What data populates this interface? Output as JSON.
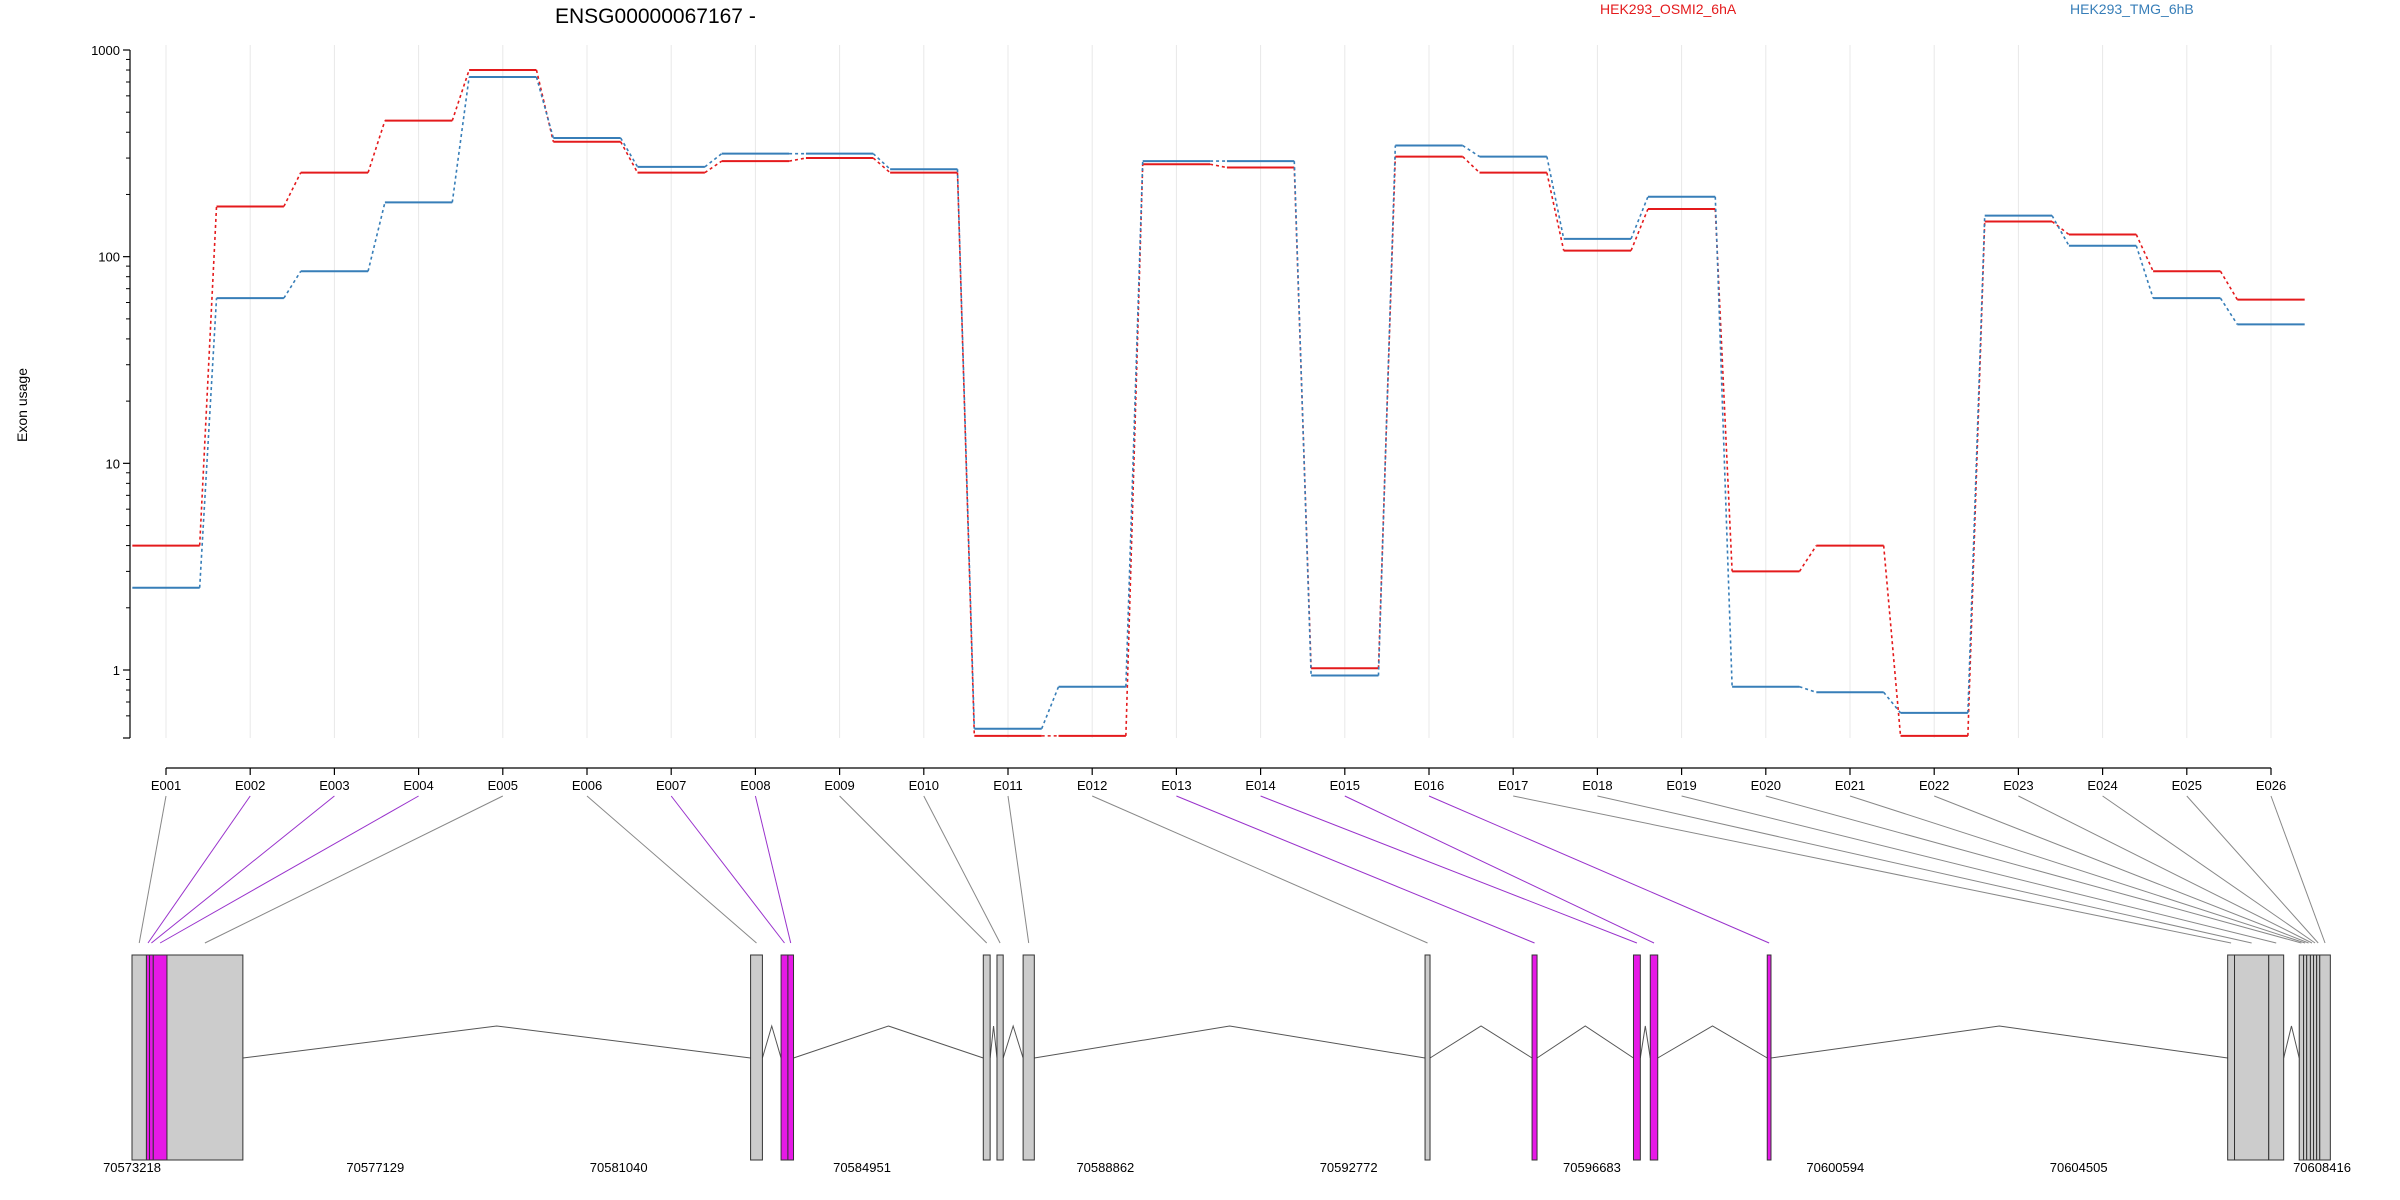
{
  "chart_data": {
    "type": "line",
    "title": "ENSG00000067167 -",
    "ylabel": "Exon usage",
    "yscale": "log",
    "ylim": [
      0.48,
      1000
    ],
    "yticks": [
      1,
      10,
      100,
      1000
    ],
    "ytick_labels": [
      "1",
      "10",
      "100",
      "1000"
    ],
    "categories": [
      "E001",
      "E002",
      "E003",
      "E004",
      "E005",
      "E006",
      "E007",
      "E008",
      "E009",
      "E010",
      "E011",
      "E012",
      "E013",
      "E014",
      "E015",
      "E016",
      "E017",
      "E018",
      "E019",
      "E020",
      "E021",
      "E022",
      "E023",
      "E024",
      "E025",
      "E026"
    ],
    "series": [
      {
        "name": "HEK293_OSMI2_6hA",
        "color": "#e41a1c",
        "values": [
          4.0,
          175,
          255,
          455,
          800,
          360,
          255,
          290,
          300,
          255,
          0.48,
          0.48,
          280,
          270,
          1.02,
          305,
          255,
          107,
          170,
          3.0,
          4.0,
          0.48,
          148,
          128,
          85,
          62
        ]
      },
      {
        "name": "HEK293_TMG_6hB",
        "color": "#377eb8",
        "values": [
          2.5,
          63,
          85,
          183,
          740,
          375,
          272,
          315,
          315,
          265,
          0.52,
          0.83,
          290,
          290,
          0.94,
          345,
          305,
          122,
          195,
          0.83,
          0.78,
          0.62,
          158,
          113,
          63,
          47
        ]
      }
    ],
    "genomic_axis": {
      "tick_labels": [
        "70573218",
        "70577129",
        "70581040",
        "70584951",
        "70588862",
        "70592772",
        "70596683",
        "70600594",
        "70604505",
        "70608416"
      ],
      "tick_values": [
        70573218,
        70577129,
        70581040,
        70584951,
        70588862,
        70592772,
        70596683,
        70600594,
        70604505,
        70608416
      ],
      "range": [
        70573218,
        70608416
      ]
    },
    "exons": [
      {
        "id": "E001",
        "start": 70573218,
        "end": 70573450,
        "highlight": false
      },
      {
        "id": "E002",
        "start": 70573450,
        "end": 70573500,
        "highlight": true
      },
      {
        "id": "E003",
        "start": 70573500,
        "end": 70573560,
        "highlight": true
      },
      {
        "id": "E004",
        "start": 70573560,
        "end": 70573780,
        "highlight": true
      },
      {
        "id": "E005",
        "start": 70573780,
        "end": 70575000,
        "highlight": false
      },
      {
        "id": "E006",
        "start": 70583160,
        "end": 70583350,
        "highlight": false
      },
      {
        "id": "E007",
        "start": 70583650,
        "end": 70583760,
        "highlight": true
      },
      {
        "id": "E008",
        "start": 70583760,
        "end": 70583850,
        "highlight": true
      },
      {
        "id": "E009",
        "start": 70586900,
        "end": 70587010,
        "highlight": false
      },
      {
        "id": "E010",
        "start": 70587120,
        "end": 70587220,
        "highlight": false
      },
      {
        "id": "E011",
        "start": 70587540,
        "end": 70587720,
        "highlight": false
      },
      {
        "id": "E012",
        "start": 70594000,
        "end": 70594080,
        "highlight": false
      },
      {
        "id": "E013",
        "start": 70595720,
        "end": 70595800,
        "highlight": true
      },
      {
        "id": "E014",
        "start": 70597350,
        "end": 70597460,
        "highlight": true
      },
      {
        "id": "E015",
        "start": 70597620,
        "end": 70597740,
        "highlight": true
      },
      {
        "id": "E016",
        "start": 70599500,
        "end": 70599560,
        "highlight": true
      },
      {
        "id": "E017",
        "start": 70606900,
        "end": 70607010,
        "highlight": false
      },
      {
        "id": "E018",
        "start": 70607010,
        "end": 70607560,
        "highlight": false
      },
      {
        "id": "E019",
        "start": 70607560,
        "end": 70607800,
        "highlight": false
      },
      {
        "id": "E020",
        "start": 70608050,
        "end": 70608120,
        "highlight": false
      },
      {
        "id": "E021",
        "start": 70608120,
        "end": 70608170,
        "highlight": false
      },
      {
        "id": "E022",
        "start": 70608170,
        "end": 70608230,
        "highlight": false
      },
      {
        "id": "E023",
        "start": 70608230,
        "end": 70608280,
        "highlight": false
      },
      {
        "id": "E024",
        "start": 70608280,
        "end": 70608330,
        "highlight": false
      },
      {
        "id": "E025",
        "start": 70608330,
        "end": 70608380,
        "highlight": false
      },
      {
        "id": "E026",
        "start": 70608380,
        "end": 70608550,
        "highlight": false
      }
    ],
    "colors": {
      "highlight_exon": "#e619e6",
      "exon_fill": "#cccccc",
      "intron": "#555555",
      "connector": "#888888",
      "connector_highlight": "#9932cc",
      "grid": "#e8e8e8"
    },
    "grid": true,
    "legend_placement": "top"
  }
}
